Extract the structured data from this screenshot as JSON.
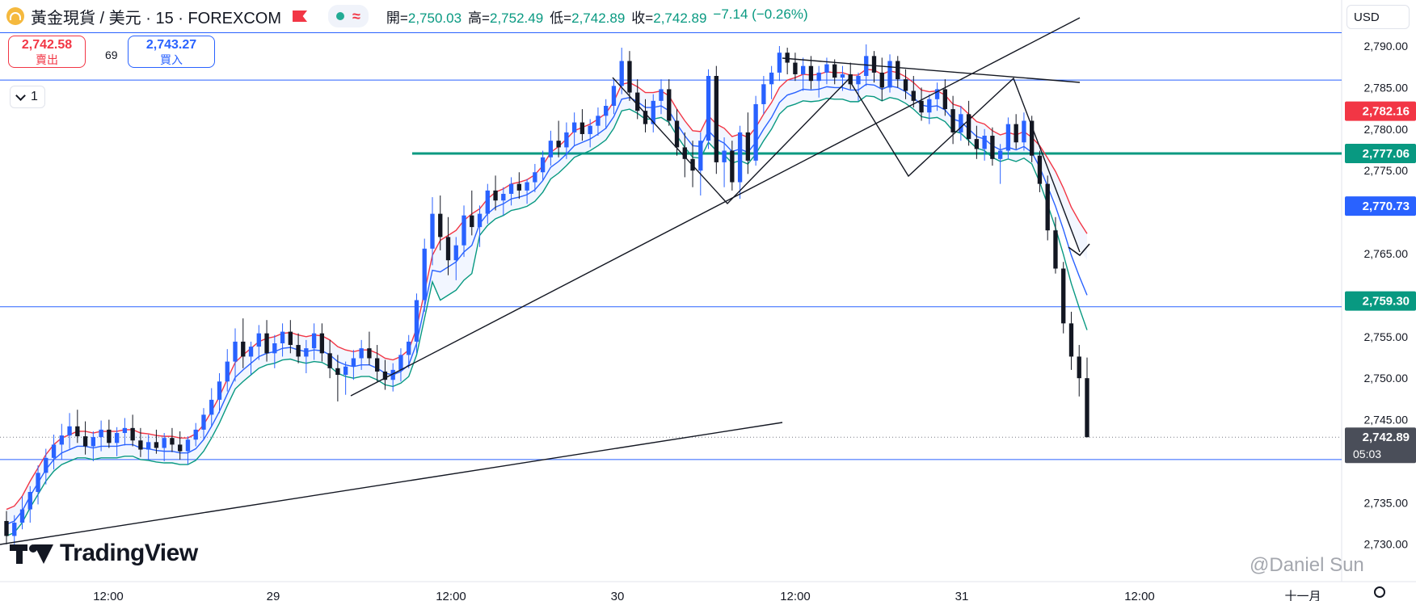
{
  "header": {
    "symbol": "黃金現貨 / 美元 · 15 · FOREXCOM",
    "ohlc": {
      "open_label": "開=",
      "open": "2,750.03",
      "high_label": "高=",
      "high": "2,752.49",
      "low_label": "低=",
      "low": "2,742.89",
      "close_label": "收=",
      "close": "2,742.89",
      "change": "−7.14 (−0.26%)"
    },
    "waves_glyph": "≈"
  },
  "trade": {
    "sell_price": "2,742.58",
    "sell_label": "賣出",
    "spread": "69",
    "buy_price": "2,743.27",
    "buy_label": "買入"
  },
  "controls": {
    "interval_count": "1",
    "currency": "USD"
  },
  "brand": {
    "name": "TradingView"
  },
  "watermark": "@Daniel Sun",
  "colors": {
    "bull": "#2962ff",
    "bear": "#131722",
    "red_band": "#f23645",
    "blue_band": "#2962ff",
    "green_band": "#089981",
    "sr_green": "#089981",
    "hline_blue": "#2962ff",
    "trendline": "#131722"
  },
  "chart_data": {
    "type": "candlestick",
    "y_axis": {
      "ticks": [
        2730,
        2735,
        2745,
        2750,
        2755,
        2765,
        2775,
        2780,
        2785,
        2790
      ],
      "tick_labels": [
        "2,730.00",
        "2,735.00",
        "2,745.00",
        "2,750.00",
        "2,755.00",
        "2,765.00",
        "2,775.00",
        "2,780.00",
        "2,785.00",
        "2,790.00"
      ],
      "ylim": [
        2725.5,
        2793.6
      ]
    },
    "x_axis": {
      "labels": [
        "12:00",
        "29",
        "12:00",
        "30",
        "12:00",
        "31",
        "12:00",
        "十一月"
      ]
    },
    "axis_tags": [
      {
        "value": 2782.16,
        "label": "2,782.16",
        "color": "#f23645"
      },
      {
        "value": 2777.06,
        "label": "2,777.06",
        "color": "#089981"
      },
      {
        "value": 2770.73,
        "label": "2,770.73",
        "color": "#2962ff"
      },
      {
        "value": 2759.3,
        "label": "2,759.30",
        "color": "#089981"
      },
      {
        "value": 2742.89,
        "label": "2,742.89",
        "sub": "05:03",
        "color": "#4a4e59"
      }
    ],
    "horizontal_levels": [
      {
        "value": 2791.6,
        "style": "blue"
      },
      {
        "value": 2785.9,
        "style": "blue"
      },
      {
        "value": 2777.06,
        "style": "green-bold"
      },
      {
        "value": 2758.6,
        "style": "blue"
      },
      {
        "value": 2740.2,
        "style": "blue"
      },
      {
        "value": 2742.89,
        "style": "dotted"
      }
    ],
    "candles_ohlc": [
      [
        2732.8,
        2734.0,
        2730.0,
        2731.0
      ],
      [
        2731.0,
        2733.5,
        2729.8,
        2732.6
      ],
      [
        2732.6,
        2735.8,
        2731.8,
        2734.2
      ],
      [
        2734.2,
        2737.0,
        2732.6,
        2736.3
      ],
      [
        2736.3,
        2739.5,
        2734.8,
        2738.6
      ],
      [
        2738.6,
        2741.5,
        2737.2,
        2740.4
      ],
      [
        2740.4,
        2743.2,
        2739.0,
        2742.0
      ],
      [
        2742.0,
        2744.5,
        2740.2,
        2743.1
      ],
      [
        2743.1,
        2745.8,
        2741.5,
        2744.2
      ],
      [
        2744.2,
        2746.2,
        2742.2,
        2743.0
      ],
      [
        2743.0,
        2744.8,
        2740.8,
        2741.8
      ],
      [
        2741.8,
        2743.6,
        2740.0,
        2742.9
      ],
      [
        2742.9,
        2744.9,
        2741.2,
        2743.8
      ],
      [
        2743.8,
        2745.0,
        2741.6,
        2742.2
      ],
      [
        2742.2,
        2744.1,
        2740.6,
        2743.4
      ],
      [
        2743.4,
        2745.2,
        2741.9,
        2744.0
      ],
      [
        2744.0,
        2745.6,
        2741.8,
        2742.5
      ],
      [
        2742.5,
        2744.0,
        2740.5,
        2741.4
      ],
      [
        2741.4,
        2743.2,
        2740.2,
        2742.3
      ],
      [
        2742.3,
        2743.8,
        2740.9,
        2741.6
      ],
      [
        2741.6,
        2743.4,
        2740.0,
        2742.8
      ],
      [
        2742.8,
        2744.0,
        2741.1,
        2742.0
      ],
      [
        2742.0,
        2743.6,
        2740.2,
        2741.2
      ],
      [
        2741.2,
        2743.0,
        2739.6,
        2742.6
      ],
      [
        2742.6,
        2744.6,
        2741.8,
        2743.8
      ],
      [
        2743.8,
        2746.4,
        2742.6,
        2745.6
      ],
      [
        2745.6,
        2748.8,
        2744.2,
        2747.4
      ],
      [
        2747.4,
        2750.6,
        2745.8,
        2749.6
      ],
      [
        2749.6,
        2753.5,
        2748.4,
        2752.0
      ],
      [
        2752.0,
        2756.0,
        2749.6,
        2754.4
      ],
      [
        2754.4,
        2757.2,
        2751.2,
        2752.6
      ],
      [
        2752.6,
        2754.4,
        2750.4,
        2753.8
      ],
      [
        2753.8,
        2756.4,
        2752.2,
        2755.4
      ],
      [
        2755.4,
        2757.0,
        2752.0,
        2753.0
      ],
      [
        2753.0,
        2755.2,
        2751.2,
        2754.2
      ],
      [
        2754.2,
        2756.6,
        2752.6,
        2755.6
      ],
      [
        2755.6,
        2757.0,
        2753.0,
        2754.0
      ],
      [
        2754.0,
        2755.4,
        2751.8,
        2752.6
      ],
      [
        2752.6,
        2754.6,
        2750.6,
        2753.6
      ],
      [
        2753.6,
        2756.6,
        2752.2,
        2755.4
      ],
      [
        2755.4,
        2756.6,
        2752.0,
        2753.0
      ],
      [
        2753.0,
        2754.6,
        2750.0,
        2751.2
      ],
      [
        2751.2,
        2752.8,
        2747.2,
        2750.4
      ],
      [
        2750.4,
        2752.0,
        2748.0,
        2751.4
      ],
      [
        2751.4,
        2753.4,
        2749.8,
        2752.4
      ],
      [
        2752.4,
        2754.6,
        2751.0,
        2753.6
      ],
      [
        2753.6,
        2755.6,
        2751.6,
        2752.4
      ],
      [
        2752.4,
        2754.0,
        2749.6,
        2750.8
      ],
      [
        2750.8,
        2752.2,
        2748.6,
        2749.8
      ],
      [
        2749.8,
        2751.8,
        2748.4,
        2751.0
      ],
      [
        2751.0,
        2753.6,
        2749.6,
        2752.8
      ],
      [
        2752.8,
        2755.2,
        2751.2,
        2754.4
      ],
      [
        2754.4,
        2760.2,
        2753.0,
        2759.4
      ],
      [
        2759.4,
        2766.8,
        2758.0,
        2765.6
      ],
      [
        2765.6,
        2771.8,
        2763.6,
        2769.8
      ],
      [
        2769.8,
        2772.0,
        2765.4,
        2767.0
      ],
      [
        2767.0,
        2769.4,
        2762.4,
        2764.2
      ],
      [
        2764.2,
        2767.0,
        2761.8,
        2766.0
      ],
      [
        2766.0,
        2770.8,
        2764.6,
        2769.6
      ],
      [
        2769.6,
        2772.6,
        2767.2,
        2768.2
      ],
      [
        2768.2,
        2770.8,
        2765.8,
        2769.8
      ],
      [
        2769.8,
        2773.4,
        2768.6,
        2772.6
      ],
      [
        2772.6,
        2774.4,
        2770.2,
        2771.4
      ],
      [
        2771.4,
        2773.0,
        2769.6,
        2772.2
      ],
      [
        2772.2,
        2774.2,
        2770.8,
        2773.4
      ],
      [
        2773.4,
        2774.8,
        2771.6,
        2772.6
      ],
      [
        2772.6,
        2774.0,
        2771.0,
        2773.6
      ],
      [
        2773.6,
        2775.8,
        2772.4,
        2774.8
      ],
      [
        2774.8,
        2777.4,
        2773.8,
        2776.6
      ],
      [
        2776.6,
        2779.8,
        2775.6,
        2778.6
      ],
      [
        2778.6,
        2781.0,
        2776.6,
        2777.8
      ],
      [
        2777.8,
        2780.8,
        2776.4,
        2779.6
      ],
      [
        2779.6,
        2782.0,
        2778.0,
        2780.8
      ],
      [
        2780.8,
        2782.4,
        2778.6,
        2779.4
      ],
      [
        2779.4,
        2781.2,
        2777.8,
        2780.4
      ],
      [
        2780.4,
        2782.6,
        2779.2,
        2781.6
      ],
      [
        2781.6,
        2783.6,
        2780.0,
        2782.8
      ],
      [
        2782.8,
        2786.0,
        2781.8,
        2785.2
      ],
      [
        2785.2,
        2789.8,
        2784.2,
        2788.2
      ],
      [
        2788.2,
        2789.4,
        2783.4,
        2784.4
      ],
      [
        2784.4,
        2786.0,
        2781.2,
        2782.2
      ],
      [
        2782.2,
        2783.6,
        2779.6,
        2780.6
      ],
      [
        2780.6,
        2784.2,
        2779.6,
        2783.4
      ],
      [
        2783.4,
        2786.0,
        2781.8,
        2784.8
      ],
      [
        2784.8,
        2786.0,
        2780.4,
        2781.0
      ],
      [
        2781.0,
        2782.4,
        2776.8,
        2777.8
      ],
      [
        2777.8,
        2779.6,
        2774.2,
        2776.4
      ],
      [
        2776.4,
        2778.6,
        2773.0,
        2775.0
      ],
      [
        2775.0,
        2779.6,
        2772.0,
        2778.6
      ],
      [
        2778.6,
        2787.2,
        2777.6,
        2786.4
      ],
      [
        2786.4,
        2787.6,
        2774.6,
        2776.0
      ],
      [
        2776.0,
        2779.0,
        2773.0,
        2777.4
      ],
      [
        2777.4,
        2778.6,
        2772.6,
        2773.6
      ],
      [
        2773.6,
        2780.4,
        2771.6,
        2779.6
      ],
      [
        2779.6,
        2782.0,
        2774.6,
        2776.2
      ],
      [
        2776.2,
        2784.0,
        2775.6,
        2783.0
      ],
      [
        2783.0,
        2786.4,
        2781.8,
        2785.4
      ],
      [
        2785.4,
        2787.6,
        2783.6,
        2786.8
      ],
      [
        2786.8,
        2790.0,
        2785.8,
        2789.2
      ],
      [
        2789.2,
        2789.8,
        2786.6,
        2788.0
      ],
      [
        2788.0,
        2789.2,
        2785.8,
        2786.6
      ],
      [
        2786.6,
        2788.6,
        2784.6,
        2787.6
      ],
      [
        2787.6,
        2788.8,
        2784.8,
        2785.8
      ],
      [
        2785.8,
        2787.6,
        2783.8,
        2786.8
      ],
      [
        2786.8,
        2788.6,
        2785.4,
        2787.8
      ],
      [
        2787.8,
        2788.4,
        2785.4,
        2786.2
      ],
      [
        2786.2,
        2787.6,
        2784.6,
        2786.6
      ],
      [
        2786.6,
        2788.0,
        2784.8,
        2785.4
      ],
      [
        2785.4,
        2786.8,
        2783.4,
        2786.4
      ],
      [
        2786.4,
        2790.2,
        2785.2,
        2788.8
      ],
      [
        2788.8,
        2789.4,
        2785.6,
        2786.8
      ],
      [
        2786.8,
        2788.6,
        2783.4,
        2785.0
      ],
      [
        2785.0,
        2789.0,
        2784.4,
        2788.2
      ],
      [
        2788.2,
        2788.8,
        2785.0,
        2786.0
      ],
      [
        2786.0,
        2787.2,
        2783.6,
        2784.6
      ],
      [
        2784.6,
        2786.4,
        2782.6,
        2783.4
      ],
      [
        2783.4,
        2785.0,
        2781.0,
        2782.0
      ],
      [
        2782.0,
        2784.2,
        2780.6,
        2783.6
      ],
      [
        2783.6,
        2785.6,
        2782.2,
        2784.8
      ],
      [
        2784.8,
        2786.0,
        2781.6,
        2782.4
      ],
      [
        2782.4,
        2784.0,
        2778.2,
        2779.6
      ],
      [
        2779.6,
        2782.8,
        2778.6,
        2781.8
      ],
      [
        2781.8,
        2783.4,
        2778.0,
        2778.8
      ],
      [
        2778.8,
        2780.4,
        2776.4,
        2777.6
      ],
      [
        2777.6,
        2780.0,
        2776.2,
        2779.2
      ],
      [
        2779.2,
        2780.2,
        2775.6,
        2776.4
      ],
      [
        2776.4,
        2778.2,
        2773.4,
        2777.4
      ],
      [
        2777.4,
        2781.4,
        2776.4,
        2780.6
      ],
      [
        2780.6,
        2781.8,
        2777.6,
        2778.4
      ],
      [
        2778.4,
        2782.0,
        2777.4,
        2781.0
      ],
      [
        2781.0,
        2781.6,
        2776.0,
        2776.8
      ],
      [
        2776.8,
        2777.4,
        2772.4,
        2773.4
      ],
      [
        2773.4,
        2774.4,
        2766.6,
        2767.8
      ],
      [
        2767.8,
        2769.4,
        2762.6,
        2763.2
      ],
      [
        2763.2,
        2764.0,
        2755.4,
        2756.6
      ],
      [
        2756.6,
        2758.0,
        2751.0,
        2752.6
      ],
      [
        2752.6,
        2754.0,
        2747.8,
        2750.0
      ],
      [
        2750.0,
        2752.49,
        2742.89,
        2742.89
      ]
    ],
    "ma_red": [
      2734.2,
      2734.6,
      2735.8,
      2737.6,
      2739.2,
      2740.8,
      2742.0,
      2742.8,
      2743.2,
      2743.6,
      2743.6,
      2743.4,
      2743.6,
      2743.6,
      2743.6,
      2743.8,
      2743.8,
      2743.4,
      2743.3,
      2743.1,
      2743.0,
      2743.0,
      2742.8,
      2742.8,
      2743.3,
      2744.4,
      2746.0,
      2747.8,
      2749.9,
      2751.9,
      2752.8,
      2753.6,
      2754.4,
      2754.8,
      2755.0,
      2755.4,
      2755.5,
      2755.2,
      2755.0,
      2755.2,
      2755.1,
      2754.6,
      2753.8,
      2753.4,
      2753.2,
      2753.4,
      2753.4,
      2753.0,
      2752.4,
      2752.2,
      2752.6,
      2753.4,
      2756.0,
      2760.4,
      2764.8,
      2766.6,
      2767.2,
      2767.8,
      2769.0,
      2769.8,
      2770.4,
      2771.6,
      2772.4,
      2772.8,
      2773.4,
      2773.6,
      2773.9,
      2774.5,
      2775.6,
      2777.2,
      2777.9,
      2778.8,
      2779.8,
      2780.2,
      2780.6,
      2781.2,
      2781.9,
      2783.3,
      2785.4,
      2785.6,
      2785.1,
      2784.4,
      2784.4,
      2784.6,
      2784.0,
      2782.4,
      2781.0,
      2779.8,
      2779.7,
      2781.6,
      2780.6,
      2780.1,
      2779.1,
      2779.4,
      2779.0,
      2780.2,
      2781.8,
      2783.2,
      2785.0,
      2785.9,
      2786.2,
      2786.6,
      2786.5,
      2786.6,
      2786.9,
      2786.8,
      2786.8,
      2786.5,
      2786.5,
      2787.2,
      2787.1,
      2786.6,
      2787.0,
      2786.8,
      2786.3,
      2785.6,
      2784.7,
      2784.5,
      2784.6,
      2784.1,
      2783.0,
      2782.7,
      2781.8,
      2780.9,
      2780.6,
      2779.8,
      2779.3,
      2779.6,
      2779.3,
      2779.7,
      2779.0,
      2778.0,
      2776.5,
      2774.9,
      2772.9,
      2770.6,
      2768.9,
      2767.4
    ]
  }
}
